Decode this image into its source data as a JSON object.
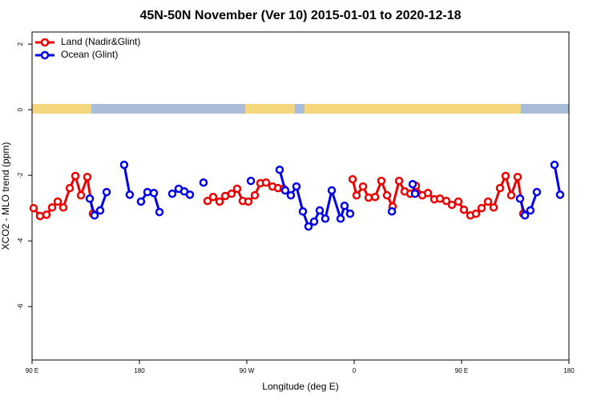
{
  "chart_data": {
    "type": "line",
    "title": "45N-50N November (Ver 10)   2015-01-01 to 2020-12-18",
    "x_label": "Longitude (deg E)",
    "y_label": "XCO2 - MLO trend (ppm)",
    "xlim": [
      90,
      540
    ],
    "xticks": [
      {
        "value": 90,
        "label": "90 E"
      },
      180,
      {
        "value": 270,
        "label": "90 W"
      },
      {
        "value": 360,
        "label": "0"
      },
      {
        "value": 450,
        "label": "90 E"
      },
      {
        "value": 540,
        "label": "180"
      }
    ],
    "ylim": [
      -7.63,
      2.37
    ],
    "yticks": [
      2,
      0,
      -2,
      -4,
      -6
    ],
    "legend": "top-left",
    "series": [
      {
        "name": "Land (Nadir&Glint)",
        "color": "#ee0000",
        "x": [
          91.3,
          96.7,
          102.1,
          106.8,
          111.5,
          116.2,
          121.6,
          126.3,
          131.0,
          136.3,
          141.0,
          null,
          237.1,
          241.8,
          247.2,
          251.9,
          257.2,
          261.9,
          266.6,
          271.3,
          276.7,
          281.4,
          286.1,
          291.5,
          296.2,
          300.9,
          null,
          358.7,
          362.0,
          367.4,
          372.1,
          377.5,
          382.8,
          387.5,
          392.2,
          397.6,
          402.3,
          407.0,
          411.7,
          417.1,
          421.8,
          427.2,
          431.9,
          437.2,
          441.9,
          447.3,
          452.0,
          457.4,
          462.1,
          466.8,
          472.2,
          476.9,
          482.2,
          486.9,
          491.6,
          497.0,
          501.7
        ],
        "values": [
          -3.0,
          -3.24,
          -3.2,
          -2.98,
          -2.8,
          -2.98,
          -2.39,
          -2.02,
          -2.61,
          -2.05,
          -3.17,
          null,
          -2.78,
          -2.66,
          -2.8,
          -2.63,
          -2.56,
          -2.41,
          -2.78,
          -2.8,
          -2.61,
          -2.24,
          -2.22,
          -2.34,
          -2.39,
          -2.41,
          null,
          -2.12,
          -2.61,
          -2.34,
          -2.68,
          -2.66,
          -2.17,
          -2.61,
          -2.95,
          -2.17,
          -2.49,
          -2.56,
          -2.32,
          -2.61,
          -2.54,
          -2.73,
          -2.71,
          -2.78,
          -2.9,
          -2.8,
          -3.05,
          -3.22,
          -3.17,
          -3.0,
          -2.8,
          -2.98,
          -2.39,
          -2.02,
          -2.61,
          -2.05,
          -3.17
        ]
      },
      {
        "name": "Ocean (Glint)",
        "color": "#0000ee",
        "x": [
          138.4,
          142.4,
          147.1,
          152.5,
          null,
          167.2,
          171.9,
          null,
          181.3,
          186.7,
          192.1,
          196.8,
          null,
          207.5,
          212.9,
          217.6,
          222.3,
          null,
          233.7,
          null,
          273.4,
          null,
          297.5,
          302.2,
          306.9,
          311.6,
          317.0,
          321.7,
          326.4,
          331.1,
          335.8,
          341.2,
          348.6,
          351.9,
          356.6,
          null,
          391.6,
          null,
          409.0,
          411.0,
          null,
          499.0,
          503.1,
          507.7,
          513.1,
          null,
          527.9,
          532.6
        ],
        "values": [
          -2.71,
          -3.22,
          -3.07,
          -2.51,
          null,
          -1.68,
          -2.59,
          null,
          -2.8,
          -2.51,
          -2.54,
          -3.12,
          null,
          -2.56,
          -2.41,
          -2.49,
          -2.59,
          null,
          -2.22,
          null,
          -2.17,
          null,
          -1.83,
          -2.46,
          -2.61,
          -2.34,
          -3.1,
          -3.56,
          -3.41,
          -3.07,
          -3.32,
          -2.46,
          -3.32,
          -2.93,
          -3.17,
          null,
          -3.1,
          null,
          -2.27,
          -2.56,
          null,
          -2.71,
          -3.22,
          -3.07,
          -2.51,
          null,
          -1.68,
          -2.59
        ]
      }
    ]
  }
}
